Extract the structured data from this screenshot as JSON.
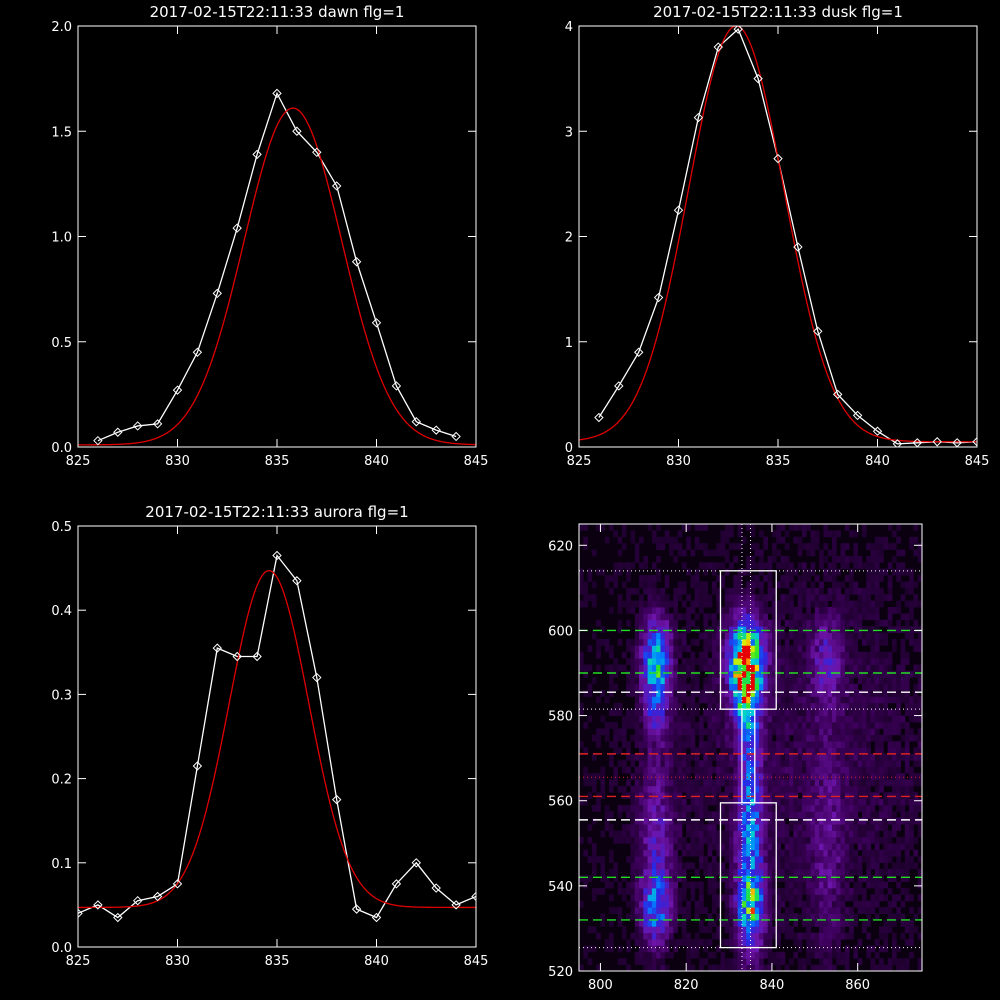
{
  "chart_data": [
    {
      "id": "dawn",
      "type": "line",
      "title": "2017-02-15T22:11:33 dawn flg=1",
      "xlabel": "",
      "ylabel": "",
      "xlim": [
        825,
        845
      ],
      "ylim": [
        0,
        2.0
      ],
      "xticks": [
        825,
        830,
        835,
        840,
        845
      ],
      "yticks": [
        0.0,
        0.5,
        1.0,
        1.5,
        2.0
      ],
      "yticklabels": [
        "0.0",
        "0.5",
        "1.0",
        "1.5",
        "2.0"
      ],
      "observed": {
        "x": [
          826,
          827,
          828,
          829,
          830,
          831,
          832,
          833,
          834,
          835,
          836,
          837,
          838,
          839,
          840,
          841,
          842,
          843,
          844
        ],
        "y": [
          0.03,
          0.07,
          0.1,
          0.11,
          0.27,
          0.45,
          0.73,
          1.04,
          1.39,
          1.68,
          1.5,
          1.4,
          1.24,
          0.88,
          0.59,
          0.29,
          0.12,
          0.08,
          0.05
        ]
      },
      "fit": {
        "model": "gaussian",
        "amplitude": 1.6,
        "center": 835.8,
        "sigma": 2.45,
        "baseline": 0.01
      }
    },
    {
      "id": "dusk",
      "type": "line",
      "title": "2017-02-15T22:11:33 dusk flg=1",
      "xlabel": "",
      "ylabel": "",
      "xlim": [
        825,
        845
      ],
      "ylim": [
        0,
        4
      ],
      "xticks": [
        825,
        830,
        835,
        840,
        845
      ],
      "yticks": [
        0,
        1,
        2,
        3,
        4
      ],
      "yticklabels": [
        "0",
        "1",
        "2",
        "3",
        "4"
      ],
      "observed": {
        "x": [
          826,
          827,
          828,
          829,
          830,
          831,
          832,
          833,
          834,
          835,
          836,
          837,
          838,
          839,
          840,
          841,
          842,
          843,
          844,
          845
        ],
        "y": [
          0.28,
          0.58,
          0.9,
          1.42,
          2.25,
          3.13,
          3.8,
          3.97,
          3.5,
          2.74,
          1.9,
          1.1,
          0.5,
          0.3,
          0.15,
          0.03,
          0.04,
          0.05,
          0.04,
          0.05
        ]
      },
      "fit": {
        "model": "gaussian",
        "amplitude": 3.95,
        "center": 832.9,
        "sigma": 2.4,
        "baseline": 0.05
      }
    },
    {
      "id": "aurora",
      "type": "line",
      "title": "2017-02-15T22:11:33 aurora flg=1",
      "xlabel": "",
      "ylabel": "",
      "xlim": [
        825,
        845
      ],
      "ylim": [
        0,
        0.5
      ],
      "xticks": [
        825,
        830,
        835,
        840,
        845
      ],
      "yticks": [
        0.0,
        0.1,
        0.2,
        0.3,
        0.4,
        0.5
      ],
      "yticklabels": [
        "0.0",
        "0.1",
        "0.2",
        "0.3",
        "0.4",
        "0.5"
      ],
      "observed": {
        "x": [
          825,
          826,
          827,
          828,
          829,
          830,
          831,
          832,
          833,
          834,
          835,
          836,
          837,
          838,
          839,
          840,
          841,
          842,
          843,
          844,
          845
        ],
        "y": [
          0.04,
          0.05,
          0.035,
          0.055,
          0.06,
          0.075,
          0.215,
          0.355,
          0.345,
          0.345,
          0.465,
          0.435,
          0.32,
          0.175,
          0.045,
          0.035,
          0.075,
          0.1,
          0.07,
          0.05,
          0.06
        ]
      },
      "fit": {
        "model": "gaussian",
        "amplitude": 0.4,
        "center": 834.6,
        "sigma": 2.0,
        "baseline": 0.047
      }
    },
    {
      "id": "image",
      "type": "heatmap",
      "title": "",
      "xlabel": "",
      "ylabel": "",
      "xlim": [
        795,
        875
      ],
      "ylim": [
        520,
        625
      ],
      "xticks": [
        800,
        820,
        840,
        860
      ],
      "yticks": [
        520,
        540,
        560,
        580,
        600,
        620
      ],
      "colormap": "rainbow",
      "background_color": "#0a0010",
      "blobs": [
        {
          "x": 813,
          "y": 594,
          "sx": 2.2,
          "sy": 6,
          "intensity": 0.52
        },
        {
          "x": 813,
          "y": 584,
          "sx": 2.0,
          "sy": 6,
          "intensity": 0.3
        },
        {
          "x": 813,
          "y": 550,
          "sx": 2.5,
          "sy": 14,
          "intensity": 0.22
        },
        {
          "x": 813,
          "y": 535,
          "sx": 2.2,
          "sy": 5,
          "intensity": 0.42
        },
        {
          "x": 834,
          "y": 593,
          "sx": 2.6,
          "sy": 6,
          "intensity": 1.0
        },
        {
          "x": 834,
          "y": 584,
          "sx": 2.2,
          "sy": 6,
          "intensity": 0.45
        },
        {
          "x": 835,
          "y": 568,
          "sx": 1.5,
          "sy": 12,
          "intensity": 0.28
        },
        {
          "x": 835,
          "y": 545,
          "sx": 2.0,
          "sy": 14,
          "intensity": 0.4
        },
        {
          "x": 835,
          "y": 535,
          "sx": 2.0,
          "sy": 5,
          "intensity": 0.45
        },
        {
          "x": 853,
          "y": 593,
          "sx": 2.4,
          "sy": 7,
          "intensity": 0.22
        },
        {
          "x": 853,
          "y": 550,
          "sx": 2.4,
          "sy": 16,
          "intensity": 0.14
        },
        {
          "x": 848,
          "y": 570,
          "sx": 25,
          "sy": 30,
          "intensity": 0.06
        }
      ],
      "boxes": [
        {
          "x": [
            828,
            841
          ],
          "y": [
            581.5,
            614
          ]
        },
        {
          "x": [
            828,
            841
          ],
          "y": [
            525.5,
            559.5
          ]
        },
        {
          "x": [
            833,
            836
          ],
          "y": [
            559.5,
            581.5
          ]
        }
      ],
      "hlines": [
        {
          "y": 614,
          "style": "dotted",
          "color": "#ffffff"
        },
        {
          "y": 600,
          "style": "dashed",
          "color": "#22dd22"
        },
        {
          "y": 590,
          "style": "dashed",
          "color": "#22dd22"
        },
        {
          "y": 585.5,
          "style": "dashed",
          "color": "#ffffff"
        },
        {
          "y": 581.5,
          "style": "dotted",
          "color": "#ffffff"
        },
        {
          "y": 571,
          "style": "dashed",
          "color": "#dd2222"
        },
        {
          "y": 565.5,
          "style": "dotted",
          "color": "#dd2222"
        },
        {
          "y": 561,
          "style": "dashed",
          "color": "#dd2222"
        },
        {
          "y": 555.5,
          "style": "dashed",
          "color": "#ffffff"
        },
        {
          "y": 542,
          "style": "dashed",
          "color": "#22dd22"
        },
        {
          "y": 532,
          "style": "dashed",
          "color": "#22dd22"
        },
        {
          "y": 525.5,
          "style": "dotted",
          "color": "#ffffff"
        }
      ],
      "vlines": [
        {
          "x": 833,
          "style": "dotted",
          "color": "#ffffff"
        },
        {
          "x": 835,
          "style": "dotted",
          "color": "#ffffff"
        }
      ]
    }
  ]
}
